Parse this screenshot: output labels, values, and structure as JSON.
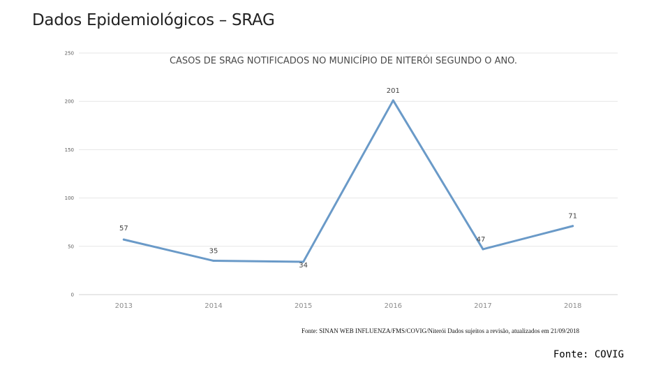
{
  "slide": {
    "title": "Dados Epidemiológicos – SRAG",
    "source_note": "Fonte: SINAN WEB INFLUENZA/FMS/COVIG/Niterói Dados sujeitos a revisão, atualizados em 21/09/2018",
    "source_footer": "Fonte: COVIG"
  },
  "chart_data": {
    "type": "line",
    "title": "CASOS DE SRAG NOTIFICADOS NO MUNICÍPIO DE NITERÓI SEGUNDO O ANO.",
    "xlabel": "",
    "ylabel": "",
    "categories": [
      "2013",
      "2014",
      "2015",
      "2016",
      "2017",
      "2018"
    ],
    "series": [
      {
        "values": [
          57,
          35,
          34,
          201,
          47,
          71
        ],
        "color": "#6a9ac8"
      }
    ],
    "data_labels": true,
    "ylim": [
      0,
      250
    ],
    "yticks": [
      0,
      50,
      100,
      150,
      200,
      250
    ],
    "grid": true,
    "legend": "none"
  }
}
